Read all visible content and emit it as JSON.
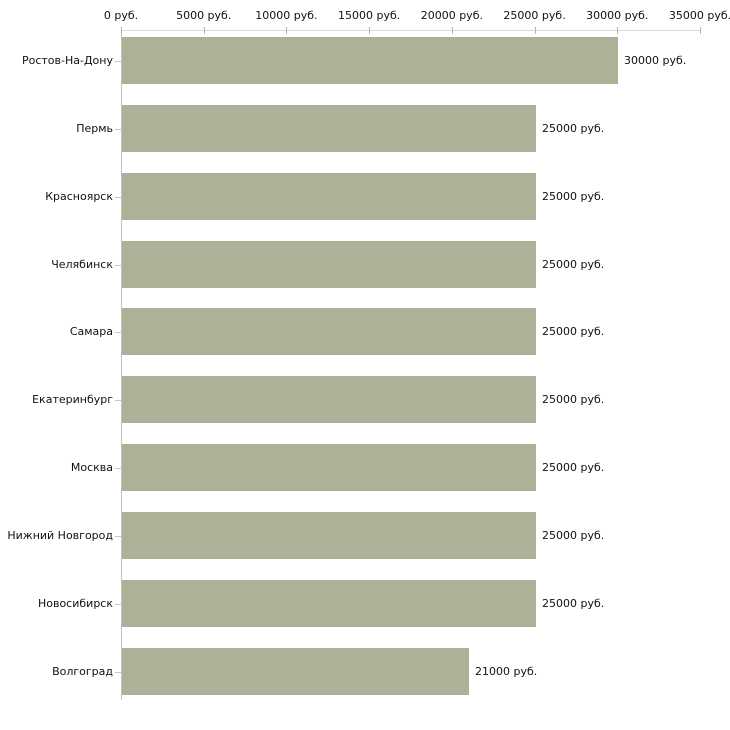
{
  "chart_data": {
    "type": "bar",
    "orientation": "horizontal",
    "title": "",
    "xlabel": "",
    "ylabel": "",
    "unit": "руб.",
    "categories": [
      "Ростов-На-Дону",
      "Пермь",
      "Красноярск",
      "Челябинск",
      "Самара",
      "Екатеринбург",
      "Москва",
      "Нижний Новгород",
      "Новосибирск",
      "Волгоград"
    ],
    "values": [
      30000,
      25000,
      25000,
      25000,
      25000,
      25000,
      25000,
      25000,
      25000,
      21000
    ],
    "value_labels": [
      "30000 руб.",
      "25000 руб.",
      "25000 руб.",
      "25000 руб.",
      "25000 руб.",
      "25000 руб.",
      "25000 руб.",
      "25000 руб.",
      "25000 руб.",
      "21000 руб."
    ],
    "x_ticks": [
      0,
      5000,
      10000,
      15000,
      20000,
      25000,
      30000,
      35000
    ],
    "x_tick_labels": [
      "0 руб.",
      "5000 руб.",
      "10000 руб.",
      "15000 руб.",
      "20000 руб.",
      "25000 руб.",
      "30000 руб.",
      "35000 руб."
    ],
    "xlim": [
      0,
      35000
    ],
    "grid": false,
    "legend_position": "none",
    "colors": {
      "bar": "#acb197",
      "x_axis_line": "#d9dcc8",
      "x_tick": "#b4ba99",
      "y_axis_line": "#c2c2c2",
      "category_tick": "#c6c6c6",
      "text": "#111111",
      "background": "#ffffff"
    }
  }
}
